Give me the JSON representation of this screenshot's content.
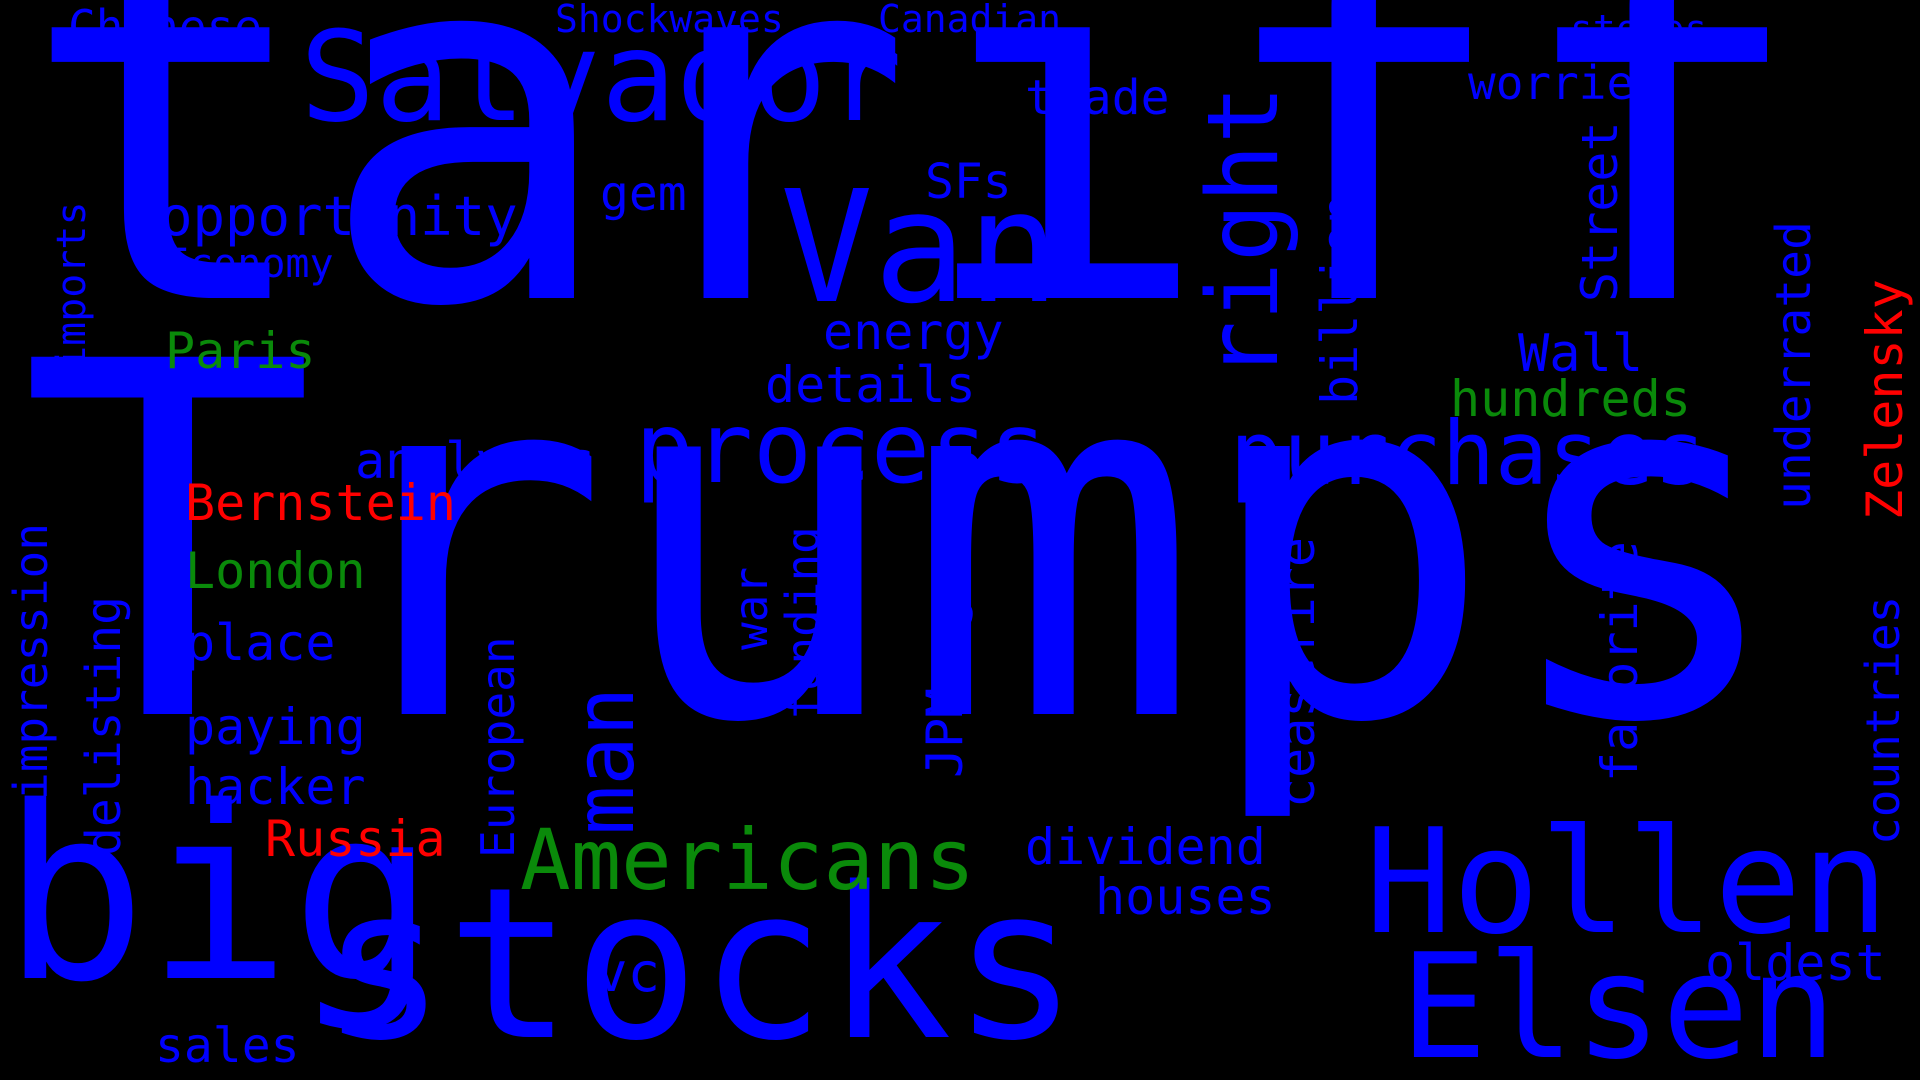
{
  "colors": {
    "blue": "#0000ff",
    "green": "#0a8a0a",
    "red": "#ff0000",
    "background": "#000000"
  },
  "words": [
    "tariff",
    "Trumps",
    "big",
    "stocks",
    "Hollen",
    "Elsen",
    "Salvador",
    "Van",
    "right",
    "process",
    "purchases",
    "Americans",
    "man",
    "Chinese",
    "Shockwaves",
    "Canadian",
    "stores",
    "worries",
    "trade",
    "opportunity",
    "gem",
    "SFs",
    "Economy",
    "imports",
    "Paris",
    "energy",
    "details",
    "Wall",
    "hundreds",
    "analysts",
    "Bernstein",
    "London",
    "place",
    "paying",
    "hacker",
    "Russia",
    "dividend",
    "houses",
    "vc",
    "oldest",
    "sales",
    "Street",
    "billion",
    "underrated",
    "Zelensky",
    "countries",
    "favorite",
    "ceasefire",
    "JPMorgan",
    "funding",
    "war",
    "European",
    "delisting",
    "impression"
  ]
}
